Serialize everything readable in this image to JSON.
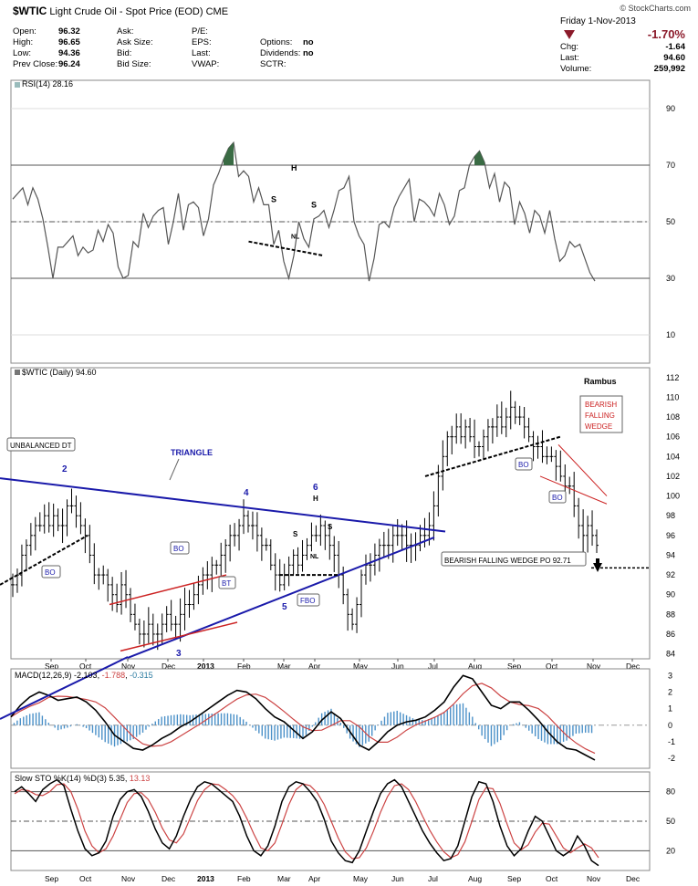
{
  "header": {
    "symbol": "$WTIC",
    "name": "Light Crude Oil - Spot Price (EOD)",
    "exchange": "CME",
    "watermark": "© StockCharts.com",
    "date": "Friday  1-Nov-2013",
    "change_pct": "-1.70%",
    "rows": [
      {
        "l1": "Open:",
        "v1": "96.32",
        "l2": "Ask:",
        "v2": "",
        "l3": "P/E:",
        "v3": "",
        "l4": "",
        "v4": ""
      },
      {
        "l1": "High:",
        "v1": "96.65",
        "l2": "Ask Size:",
        "v2": "",
        "l3": "EPS:",
        "v3": "",
        "l4": "Options:",
        "v4": "no"
      },
      {
        "l1": "Low:",
        "v1": "94.36",
        "l2": "Bid:",
        "v2": "",
        "l3": "Last:",
        "v3": "",
        "l4": "Dividends:",
        "v4": "no"
      },
      {
        "l1": "Prev Close:",
        "v1": "96.24",
        "l2": "Bid Size:",
        "v2": "",
        "l3": "VWAP:",
        "v3": "",
        "l4": "SCTR:",
        "v4": ""
      }
    ],
    "right_rows": [
      {
        "label": "Chg:",
        "value": "-1.64"
      },
      {
        "label": "Last:",
        "value": "94.60"
      },
      {
        "label": "Volume:",
        "value": "259,992"
      }
    ]
  },
  "colors": {
    "down": "#8b1a2a",
    "blue": "#1a1aaa",
    "red": "#cc2222",
    "grid": "#dddddd",
    "line": "#333333",
    "fill": "#3a6b44",
    "macd_hist": "#4a90c8",
    "sig": "#cc4444"
  },
  "chart_data": [
    {
      "type": "line",
      "panel": "rsi",
      "legend": "RSI(14) 28.16",
      "y_ticks": [
        10,
        30,
        50,
        70,
        90
      ],
      "ylim": [
        0,
        100
      ],
      "ref_lines": [
        30,
        50,
        70
      ],
      "values": [
        58,
        60,
        62,
        56,
        62,
        58,
        51,
        41,
        30,
        41,
        41,
        43,
        45,
        38,
        41,
        39,
        40,
        47,
        43,
        49,
        46,
        34,
        30,
        31,
        43,
        41,
        53,
        48,
        52,
        54,
        55,
        42,
        50,
        60,
        47,
        56,
        57,
        55,
        45,
        51,
        63,
        67,
        72,
        76,
        78,
        66,
        68,
        66,
        57,
        62,
        56,
        56,
        42,
        47,
        36,
        30,
        38,
        50,
        44,
        41,
        51,
        52,
        54,
        48,
        54,
        61,
        62,
        66,
        50,
        45,
        42,
        29,
        37,
        49,
        50,
        48,
        55,
        59,
        62,
        65,
        50,
        58,
        57,
        55,
        52,
        60,
        56,
        49,
        52,
        61,
        62,
        70,
        73,
        75,
        71,
        62,
        67,
        57,
        64,
        62,
        49,
        57,
        53,
        46,
        54,
        52,
        46,
        54,
        44,
        36,
        38,
        43,
        41,
        42,
        37,
        32,
        29
      ],
      "annotations": [
        {
          "text": "H",
          "at": [
            56,
            68
          ]
        },
        {
          "text": "S",
          "at": [
            52,
            57
          ]
        },
        {
          "text": "S",
          "at": [
            60,
            55
          ]
        },
        {
          "text": "NL",
          "at": [
            56,
            44
          ]
        }
      ]
    },
    {
      "type": "ohlc",
      "panel": "price",
      "legend": "$WTIC (Daily) 94.60",
      "y_ticks": [
        84,
        86,
        88,
        90,
        92,
        94,
        96,
        98,
        100,
        102,
        104,
        106,
        108,
        110,
        112
      ],
      "ylim": [
        83.5,
        113
      ],
      "x_ticks": [
        "Sep",
        "Oct",
        "Nov",
        "Dec",
        "2013",
        "Feb",
        "Mar",
        "Apr",
        "May",
        "Jun",
        "Jul",
        "Aug",
        "Sep",
        "Oct",
        "Nov",
        "Dec"
      ],
      "close": [
        91,
        92,
        94,
        95,
        96,
        97,
        97,
        98,
        97,
        98,
        97,
        97,
        99,
        99,
        98,
        97,
        96,
        94,
        92,
        92,
        92,
        91,
        90,
        89,
        91,
        90,
        88,
        87,
        86,
        86,
        87,
        86,
        86,
        87,
        88,
        87,
        87,
        88,
        89,
        89,
        90,
        91,
        92,
        92,
        93,
        93,
        94,
        95,
        96,
        96,
        97,
        98,
        97,
        97,
        96,
        95,
        95,
        93,
        92,
        91,
        92,
        93,
        94,
        93,
        94,
        95,
        96,
        96,
        97,
        96,
        95,
        94,
        92,
        90,
        88,
        87,
        89,
        92,
        93,
        93,
        94,
        95,
        95,
        95,
        96,
        96,
        96,
        95,
        95,
        95,
        96,
        96,
        97,
        99,
        102,
        104,
        106,
        106,
        107,
        106,
        107,
        106,
        105,
        105,
        106,
        107,
        107,
        108,
        107,
        108,
        109,
        108,
        108,
        107,
        106,
        105,
        105,
        104,
        104,
        104,
        103,
        102,
        101,
        101,
        99,
        97,
        96,
        97,
        96,
        95
      ],
      "annotations": [
        "UNBALANCED DT",
        "TRIANGLE",
        "BO",
        "BO",
        "BT",
        "FBO",
        "BO",
        "BO",
        "Rambus",
        "BEARISH",
        "FALLING",
        "WEDGE",
        "BEARISH FALLING WEDGE PO 92.71",
        "2",
        "3",
        "4",
        "5",
        "6",
        "H",
        "S",
        "S",
        "NL"
      ]
    },
    {
      "type": "line",
      "panel": "macd",
      "legend": "MACD(12,26,9)",
      "legend_values": [
        "-2.103",
        "-1.788",
        "-0.315"
      ],
      "y_ticks": [
        -2,
        -1,
        0,
        1,
        2,
        3
      ],
      "ylim": [
        -2.6,
        3.4
      ],
      "macd": [
        0.5,
        1.2,
        1.7,
        2.0,
        1.8,
        1.5,
        1.6,
        1.7,
        1.4,
        0.9,
        0.2,
        -0.6,
        -1.0,
        -1.4,
        -1.5,
        -1.2,
        -0.8,
        -0.5,
        -0.1,
        0.2,
        0.6,
        1.0,
        1.4,
        1.8,
        2.1,
        2.0,
        1.6,
        1.0,
        0.5,
        0.2,
        -0.3,
        -0.8,
        -0.4,
        0.3,
        0.8,
        0.4,
        -0.4,
        -1.2,
        -1.5,
        -1.0,
        -0.4,
        0.0,
        0.2,
        0.3,
        0.5,
        0.9,
        1.4,
        2.3,
        3.0,
        2.8,
        2.0,
        1.2,
        1.0,
        1.4,
        1.4,
        0.9,
        0.3,
        -0.4,
        -1.0,
        -1.4,
        -1.5,
        -1.8,
        -2.1
      ]
    },
    {
      "type": "line",
      "panel": "sto",
      "legend": "Slow STO %K(14) %D(3)",
      "legend_values": [
        "5.35",
        "13.13"
      ],
      "y_ticks": [
        20,
        50,
        80
      ],
      "ylim": [
        0,
        100
      ],
      "ref_lines": [
        20,
        50,
        80
      ],
      "k": [
        80,
        85,
        78,
        70,
        82,
        88,
        92,
        86,
        62,
        40,
        22,
        15,
        18,
        30,
        55,
        72,
        80,
        82,
        75,
        60,
        42,
        28,
        22,
        35,
        55,
        72,
        85,
        90,
        88,
        82,
        76,
        70,
        55,
        35,
        20,
        15,
        25,
        45,
        70,
        85,
        90,
        88,
        80,
        70,
        52,
        30,
        18,
        10,
        8,
        20,
        40,
        60,
        78,
        88,
        92,
        85,
        70,
        55,
        40,
        28,
        18,
        10,
        12,
        25,
        50,
        75,
        90,
        88,
        70,
        45,
        25,
        15,
        22,
        40,
        55,
        50,
        35,
        20,
        15,
        20,
        35,
        25,
        10,
        5
      ],
      "d": [
        78,
        82,
        81,
        77,
        76,
        80,
        87,
        88,
        80,
        62,
        40,
        25,
        18,
        22,
        35,
        52,
        69,
        78,
        79,
        72,
        59,
        43,
        31,
        28,
        37,
        54,
        71,
        82,
        88,
        87,
        82,
        76,
        67,
        53,
        37,
        23,
        20,
        28,
        47,
        67,
        82,
        88,
        86,
        79,
        67,
        50,
        33,
        19,
        12,
        13,
        23,
        40,
        59,
        75,
        86,
        88,
        82,
        70,
        55,
        41,
        29,
        19,
        13,
        16,
        29,
        50,
        72,
        84,
        83,
        68,
        47,
        28,
        21,
        26,
        39,
        48,
        47,
        35,
        23,
        18,
        23,
        27,
        23,
        13
      ]
    }
  ]
}
